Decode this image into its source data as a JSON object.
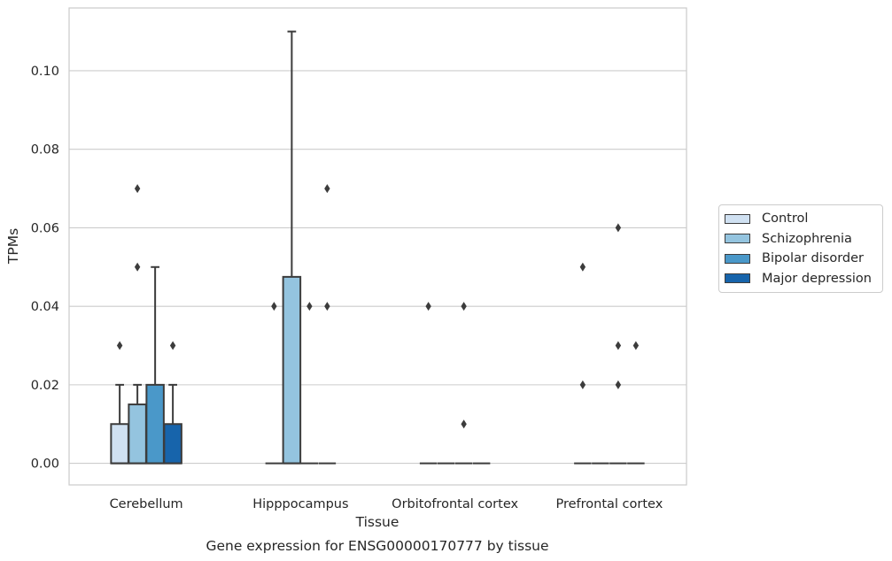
{
  "chart_data": {
    "type": "boxplot",
    "title": "Gene expression for ENSG00000170777 by tissue",
    "xlabel": "Tissue",
    "ylabel": "TPMs",
    "ylim": [
      -0.0055,
      0.116
    ],
    "yticks": [
      "0.00",
      "0.02",
      "0.04",
      "0.06",
      "0.08",
      "0.10"
    ],
    "grid": true,
    "legend_position": "right",
    "categories": [
      "Cerebellum",
      "Hipppocampus",
      "Orbitofrontal cortex",
      "Prefrontal cortex"
    ],
    "series": [
      {
        "name": "Control",
        "color": "#d0e1f2",
        "boxes": [
          {
            "q1": 0.0,
            "median": 0.0,
            "q3": 0.01,
            "whislo": 0.0,
            "whishi": 0.02,
            "fliers": [
              0.03
            ]
          },
          {
            "q1": 0.0,
            "median": 0.0,
            "q3": 0.0,
            "whislo": 0.0,
            "whishi": 0.0,
            "fliers": [
              0.04
            ]
          },
          {
            "q1": 0.0,
            "median": 0.0,
            "q3": 0.0,
            "whislo": 0.0,
            "whishi": 0.0,
            "fliers": [
              0.04
            ]
          },
          {
            "q1": 0.0,
            "median": 0.0,
            "q3": 0.0,
            "whislo": 0.0,
            "whishi": 0.0,
            "fliers": [
              0.02,
              0.05
            ]
          }
        ]
      },
      {
        "name": "Schizophrenia",
        "color": "#94c4df",
        "boxes": [
          {
            "q1": 0.0,
            "median": 0.0,
            "q3": 0.015,
            "whislo": 0.0,
            "whishi": 0.02,
            "fliers": [
              0.05,
              0.07
            ]
          },
          {
            "q1": 0.0,
            "median": 0.0,
            "q3": 0.0475,
            "whislo": 0.0,
            "whishi": 0.11,
            "fliers": []
          },
          {
            "q1": 0.0,
            "median": 0.0,
            "q3": 0.0,
            "whislo": 0.0,
            "whishi": 0.0,
            "fliers": []
          },
          {
            "q1": 0.0,
            "median": 0.0,
            "q3": 0.0,
            "whislo": 0.0,
            "whishi": 0.0,
            "fliers": []
          }
        ]
      },
      {
        "name": "Bipolar disorder",
        "color": "#4a98c9",
        "boxes": [
          {
            "q1": 0.0,
            "median": 0.0,
            "q3": 0.02,
            "whislo": 0.0,
            "whishi": 0.05,
            "fliers": []
          },
          {
            "q1": 0.0,
            "median": 0.0,
            "q3": 0.0,
            "whislo": 0.0,
            "whishi": 0.0,
            "fliers": [
              0.04
            ]
          },
          {
            "q1": 0.0,
            "median": 0.0,
            "q3": 0.0,
            "whislo": 0.0,
            "whishi": 0.0,
            "fliers": [
              0.01,
              0.04
            ]
          },
          {
            "q1": 0.0,
            "median": 0.0,
            "q3": 0.0,
            "whislo": 0.0,
            "whishi": 0.0,
            "fliers": [
              0.02,
              0.03,
              0.06
            ]
          }
        ]
      },
      {
        "name": "Major depression",
        "color": "#1764ab",
        "boxes": [
          {
            "q1": 0.0,
            "median": 0.0,
            "q3": 0.01,
            "whislo": 0.0,
            "whishi": 0.02,
            "fliers": [
              0.03
            ]
          },
          {
            "q1": 0.0,
            "median": 0.0,
            "q3": 0.0,
            "whislo": 0.0,
            "whishi": 0.0,
            "fliers": [
              0.04,
              0.07
            ]
          },
          {
            "q1": 0.0,
            "median": 0.0,
            "q3": 0.0,
            "whislo": 0.0,
            "whishi": 0.0,
            "fliers": []
          },
          {
            "q1": 0.0,
            "median": 0.0,
            "q3": 0.0,
            "whislo": 0.0,
            "whishi": 0.0,
            "fliers": [
              0.03
            ]
          }
        ]
      }
    ]
  }
}
